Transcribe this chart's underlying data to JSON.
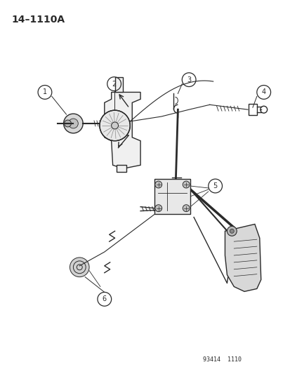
{
  "title": "14–1110A",
  "footer": "93414  1110",
  "bg_color": "#ffffff",
  "lc": "#2a2a2a",
  "figsize": [
    4.14,
    5.33
  ],
  "dpi": 100
}
